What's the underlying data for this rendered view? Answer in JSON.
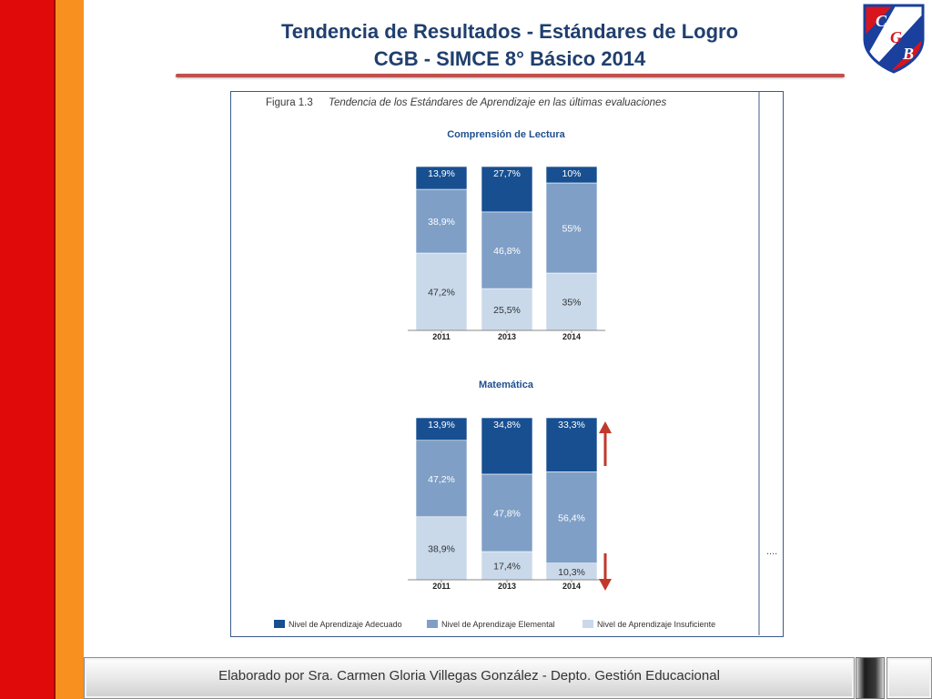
{
  "header": {
    "title_line1": "Tendencia de Resultados  - Estándares de Logro",
    "title_line2": "CGB  - SIMCE 8° Básico 2014"
  },
  "logo": {
    "letters": [
      "C",
      "G",
      "B"
    ],
    "colors": {
      "red": "#d9141e",
      "blue": "#1a3f9c",
      "white": "#ffffff"
    }
  },
  "figure": {
    "number": "Figura 1.3",
    "caption": "Tendencia de los Estándares de Aprendizaje en las últimas evaluaciones",
    "ellipsis": "...."
  },
  "chart_data": [
    {
      "type": "bar",
      "stacked": true,
      "title": "Comprensión de Lectura",
      "categories": [
        "2011",
        "2013",
        "2014"
      ],
      "series": [
        {
          "name": "Nivel de Aprendizaje Insuficiente",
          "values": [
            47.2,
            25.5,
            35
          ],
          "labels": [
            "47,2%",
            "25,5%",
            "35%"
          ],
          "color": "#c9d9ea",
          "text_color": "#333333"
        },
        {
          "name": "Nivel de Aprendizaje Elemental",
          "values": [
            38.9,
            46.8,
            55
          ],
          "labels": [
            "38,9%",
            "46,8%",
            "55%"
          ],
          "color": "#7f9fc6",
          "text_color": "#ffffff"
        },
        {
          "name": "Nivel de Aprendizaje Adecuado",
          "values": [
            13.9,
            27.7,
            10
          ],
          "labels": [
            "13,9%",
            "27,7%",
            "10%"
          ],
          "color": "#184f91",
          "text_color": "#ffffff"
        }
      ],
      "ylim": [
        0,
        100
      ]
    },
    {
      "type": "bar",
      "stacked": true,
      "title": "Matemática",
      "categories": [
        "2011",
        "2013",
        "2014"
      ],
      "series": [
        {
          "name": "Nivel de Aprendizaje Insuficiente",
          "values": [
            38.9,
            17.4,
            10.3
          ],
          "labels": [
            "38,9%",
            "17,4%",
            "10,3%"
          ],
          "color": "#c9d9ea",
          "text_color": "#333333"
        },
        {
          "name": "Nivel de Aprendizaje Elemental",
          "values": [
            47.2,
            47.8,
            56.4
          ],
          "labels": [
            "47,2%",
            "47,8%",
            "56,4%"
          ],
          "color": "#7f9fc6",
          "text_color": "#ffffff"
        },
        {
          "name": "Nivel de Aprendizaje Adecuado",
          "values": [
            13.9,
            34.8,
            33.3
          ],
          "labels": [
            "13,9%",
            "34,8%",
            "33,3%"
          ],
          "color": "#184f91",
          "text_color": "#ffffff"
        }
      ],
      "ylim": [
        0,
        100
      ],
      "annotations": {
        "up_arrow_category": "2014",
        "down_arrow_category": "2014",
        "arrow_color": "#c0392b"
      }
    }
  ],
  "legend": {
    "items": [
      {
        "label": "Nivel de Aprendizaje Adecuado",
        "color": "#184f91"
      },
      {
        "label": "Nivel de Aprendizaje Elemental",
        "color": "#7f9fc6"
      },
      {
        "label": "Nivel de Aprendizaje Insuficiente",
        "color": "#c9d9ea"
      }
    ]
  },
  "footer": {
    "text": "Elaborado por Sra. Carmen Gloria Villegas González  - Depto. Gestión Educacional"
  }
}
